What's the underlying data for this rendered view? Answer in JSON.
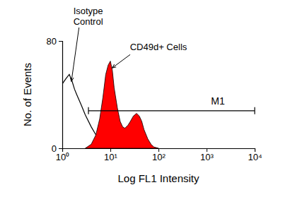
{
  "chart_data": {
    "type": "line",
    "x_label": "Log FL1 Intensity",
    "y_label": "No. of Events",
    "log": "x",
    "xlim": [
      1,
      10000
    ],
    "ylim": [
      0,
      80
    ],
    "xticks": [
      {
        "value": 1,
        "label": "10⁰"
      },
      {
        "value": 10,
        "label": "10¹"
      },
      {
        "value": 100,
        "label": "10²"
      },
      {
        "value": 1000,
        "label": "10³"
      },
      {
        "value": 10000,
        "label": "10⁴"
      }
    ],
    "yticks": [
      0,
      80
    ],
    "series": [
      {
        "name": "Isotype Control",
        "type": "line",
        "color": "#000000",
        "x": [
          1,
          1.2,
          1.4,
          1.6,
          1.8,
          2,
          2.5,
          3,
          4,
          5,
          6,
          8,
          10,
          13,
          16
        ],
        "values": [
          48,
          52,
          55,
          50,
          44,
          40,
          32,
          25,
          16,
          10,
          7,
          4,
          2,
          1,
          0
        ]
      },
      {
        "name": "CD49d+ Cells",
        "type": "area",
        "color": "#ff0000",
        "x": [
          3,
          4,
          5,
          6,
          7,
          8,
          9,
          10,
          11,
          12,
          14,
          16,
          18,
          20,
          23,
          26,
          30,
          35,
          40,
          45,
          50,
          60,
          70,
          80,
          100
        ],
        "values": [
          0,
          3,
          10,
          22,
          38,
          55,
          62,
          65,
          58,
          45,
          30,
          20,
          16,
          15,
          17,
          20,
          24,
          26,
          24,
          20,
          14,
          7,
          3,
          1,
          0
        ]
      }
    ],
    "annotations": [
      {
        "text": "Isotype Control",
        "x": 1.7,
        "y": 100,
        "target_x": 1.55,
        "target_y": 50
      },
      {
        "text": "CD49d+ Cells",
        "x": 100,
        "y": 73,
        "target_x": 11,
        "target_y": 60
      }
    ],
    "gate": {
      "label": "M1",
      "range": [
        3.5,
        10000
      ],
      "y": 28
    }
  }
}
